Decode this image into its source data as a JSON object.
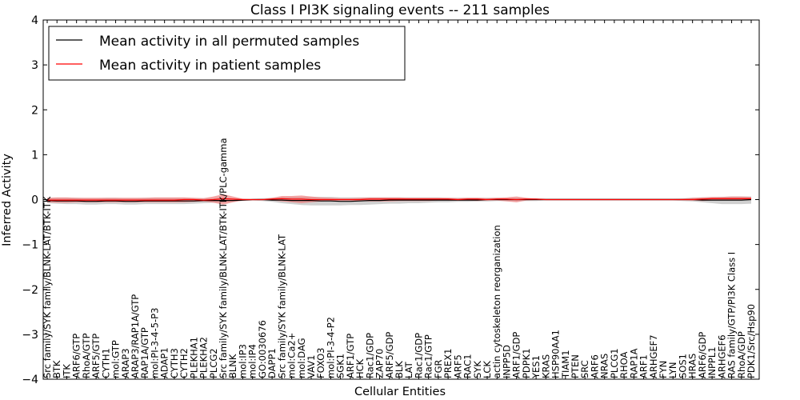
{
  "chart_data": {
    "type": "line",
    "title": "Class I PI3K signaling events -- 211 samples",
    "xlabel": "Cellular Entities",
    "ylabel": "Inferred Activity",
    "ylim": [
      -4,
      4
    ],
    "yticks": [
      -4,
      -3,
      -2,
      -1,
      0,
      1,
      2,
      3,
      4
    ],
    "ytick_labels": [
      "−4",
      "−3",
      "−2",
      "−1",
      "0",
      "1",
      "2",
      "3",
      "4"
    ],
    "legend_position": "top-left",
    "categories": [
      "Src family/SYK family/BLNK-LAT/BTK-ITK",
      "BTK",
      "ITK",
      "ARF6/GTP",
      "RhoA/GTP",
      "ARF5/GTP",
      "CYTH1",
      "mol:GTP",
      "ARAP3",
      "ARAP3/RAP1A/GTP",
      "RAP1A/GTP",
      "mol:PI-3-4-5-P3",
      "ADAP1",
      "CYTH3",
      "CYTH2",
      "PLEKHA1",
      "PLEKHA2",
      "PLCG2",
      "Src family/SYK family/BLNK-LAT/BTK-ITK/PLC-gamma",
      "BLNK",
      "mol:IP3",
      "mol:IP4",
      "GO:0030676",
      "DAPP1",
      "Src family/SYK family/BLNK-LAT",
      "mol:Ca2+",
      "mol:DAG",
      "VAV1",
      "FOXO3",
      "mol:PI-3-4-P2",
      "SGK1",
      "ARF1/GTP",
      "HCK",
      "Rac1/GDP",
      "ZAP70",
      "ARF5/GDP",
      "BLK",
      "LAT",
      "Rac1/GDP",
      "Rac1/GTP",
      "FGR",
      "PREX1",
      "ARF5",
      "RAC1",
      "SYK",
      "LCK",
      "actin cytoskeleton reorganization",
      "INPP5D",
      "ARF1/GDP",
      "PDPK1",
      "YES1",
      "KRAS",
      "HSP90AA1",
      "TIAM1",
      "PTEN",
      "SRC",
      "ARF6",
      "NRAS",
      "PLCG1",
      "RHOA",
      "RAP1A",
      "ARF1",
      "ARHGEF7",
      "FYN",
      "LYN",
      "SOS1",
      "HRAS",
      "ARF6/GDP",
      "INPPL1",
      "ARHGEF6",
      "RAS family/GTP/PI3K Class I",
      "RhoA/GDP",
      "PDK1/Src/Hsp90"
    ],
    "series": [
      {
        "name": "Mean activity in all permuted samples",
        "color": "#000000",
        "band_color": "#c0c0c0",
        "values": [
          -0.02,
          -0.03,
          -0.03,
          -0.03,
          -0.04,
          -0.04,
          -0.03,
          -0.03,
          -0.04,
          -0.04,
          -0.03,
          -0.03,
          -0.03,
          -0.03,
          -0.03,
          -0.03,
          -0.02,
          -0.02,
          -0.02,
          -0.02,
          -0.01,
          0,
          0,
          -0.01,
          -0.01,
          -0.02,
          -0.02,
          -0.02,
          -0.03,
          -0.03,
          -0.04,
          -0.04,
          -0.03,
          -0.02,
          -0.02,
          -0.01,
          -0.01,
          -0.01,
          -0.01,
          -0.01,
          -0.01,
          -0.01,
          -0.01,
          -0.01,
          -0.01,
          0,
          0,
          0,
          0,
          0,
          0,
          0,
          0,
          0,
          0,
          0,
          0,
          0,
          0,
          0,
          0,
          0,
          0,
          0,
          0,
          0,
          0,
          -0.01,
          -0.01,
          -0.01,
          -0.01,
          -0.01,
          0
        ],
        "band_lower": [
          -0.08,
          -0.09,
          -0.1,
          -0.1,
          -0.11,
          -0.11,
          -0.1,
          -0.1,
          -0.11,
          -0.11,
          -0.1,
          -0.1,
          -0.1,
          -0.1,
          -0.1,
          -0.09,
          -0.08,
          -0.07,
          -0.06,
          -0.04,
          -0.03,
          -0.02,
          -0.03,
          -0.05,
          -0.08,
          -0.1,
          -0.12,
          -0.13,
          -0.13,
          -0.13,
          -0.13,
          -0.12,
          -0.12,
          -0.11,
          -0.1,
          -0.09,
          -0.09,
          -0.08,
          -0.08,
          -0.07,
          -0.06,
          -0.06,
          -0.05,
          -0.05,
          -0.04,
          -0.04,
          -0.03,
          -0.03,
          -0.03,
          -0.03,
          -0.03,
          -0.02,
          -0.02,
          -0.02,
          -0.02,
          -0.02,
          -0.02,
          -0.02,
          -0.02,
          -0.02,
          -0.02,
          -0.02,
          -0.02,
          -0.02,
          -0.02,
          -0.03,
          -0.04,
          -0.06,
          -0.08,
          -0.1,
          -0.1,
          -0.1,
          -0.09
        ],
        "band_upper": [
          0.04,
          0.04,
          0.04,
          0.04,
          0.03,
          0.03,
          0.04,
          0.04,
          0.03,
          0.03,
          0.04,
          0.04,
          0.04,
          0.04,
          0.04,
          0.03,
          0.03,
          0.03,
          0.03,
          0.02,
          0.02,
          0.02,
          0.03,
          0.04,
          0.05,
          0.06,
          0.06,
          0.06,
          0.06,
          0.06,
          0.05,
          0.05,
          0.05,
          0.05,
          0.05,
          0.05,
          0.05,
          0.05,
          0.05,
          0.05,
          0.05,
          0.04,
          0.04,
          0.04,
          0.04,
          0.04,
          0.04,
          0.03,
          0.03,
          0.03,
          0.03,
          0.03,
          0.03,
          0.03,
          0.03,
          0.03,
          0.03,
          0.03,
          0.03,
          0.03,
          0.03,
          0.03,
          0.03,
          0.03,
          0.03,
          0.03,
          0.04,
          0.05,
          0.05,
          0.06,
          0.07,
          0.07,
          0.07
        ]
      },
      {
        "name": "Mean activity in patient samples",
        "color": "#ff0000",
        "band_color": "#f08080",
        "values": [
          -0.01,
          -0.01,
          -0.01,
          -0.01,
          -0.01,
          -0.01,
          -0.01,
          -0.01,
          -0.01,
          -0.01,
          -0.01,
          -0.01,
          -0.01,
          -0.01,
          0,
          0,
          -0.01,
          0,
          0.02,
          0.01,
          0,
          0,
          0,
          0.01,
          0.02,
          0.01,
          0.01,
          0,
          0,
          0,
          0,
          0,
          0,
          0.01,
          0.01,
          0.01,
          0.01,
          0.01,
          0.01,
          0.01,
          0.01,
          0.01,
          0,
          0.01,
          0.01,
          0,
          0.01,
          0.01,
          0,
          0.01,
          0.01,
          0,
          0,
          0,
          0,
          0,
          0,
          0,
          0,
          0,
          0,
          0,
          0,
          0,
          0,
          0,
          0,
          0.01,
          0.02,
          0.02,
          0.02,
          0.02,
          0.02
        ],
        "band_lower": [
          -0.06,
          -0.07,
          -0.07,
          -0.06,
          -0.06,
          -0.06,
          -0.06,
          -0.06,
          -0.06,
          -0.06,
          -0.06,
          -0.06,
          -0.06,
          -0.06,
          -0.06,
          -0.05,
          -0.04,
          -0.07,
          -0.11,
          -0.06,
          -0.02,
          -0.01,
          -0.01,
          -0.02,
          -0.04,
          -0.06,
          -0.08,
          -0.06,
          -0.04,
          -0.03,
          -0.02,
          -0.02,
          -0.03,
          -0.04,
          -0.04,
          -0.04,
          -0.03,
          -0.03,
          -0.03,
          -0.03,
          -0.02,
          -0.02,
          -0.02,
          -0.02,
          -0.03,
          -0.02,
          -0.02,
          -0.04,
          -0.06,
          -0.02,
          -0.01,
          -0.01,
          -0.01,
          -0.01,
          -0.01,
          -0.01,
          -0.01,
          -0.01,
          -0.01,
          -0.01,
          -0.01,
          -0.01,
          -0.01,
          -0.01,
          -0.01,
          -0.01,
          -0.02,
          -0.03,
          -0.02,
          -0.02,
          -0.02,
          -0.02,
          -0.01
        ],
        "band_upper": [
          0.04,
          0.05,
          0.05,
          0.04,
          0.04,
          0.04,
          0.04,
          0.04,
          0.04,
          0.04,
          0.04,
          0.05,
          0.05,
          0.05,
          0.05,
          0.04,
          0.03,
          0.07,
          0.12,
          0.07,
          0.02,
          0.01,
          0.01,
          0.04,
          0.08,
          0.08,
          0.09,
          0.07,
          0.05,
          0.04,
          0.03,
          0.03,
          0.04,
          0.05,
          0.05,
          0.05,
          0.05,
          0.04,
          0.04,
          0.04,
          0.04,
          0.04,
          0.03,
          0.04,
          0.04,
          0.03,
          0.04,
          0.05,
          0.07,
          0.04,
          0.02,
          0.01,
          0.01,
          0.01,
          0.01,
          0.01,
          0.01,
          0.01,
          0.01,
          0.01,
          0.01,
          0.01,
          0.01,
          0.01,
          0.01,
          0.02,
          0.04,
          0.05,
          0.06,
          0.06,
          0.07,
          0.07,
          0.06
        ]
      }
    ]
  }
}
